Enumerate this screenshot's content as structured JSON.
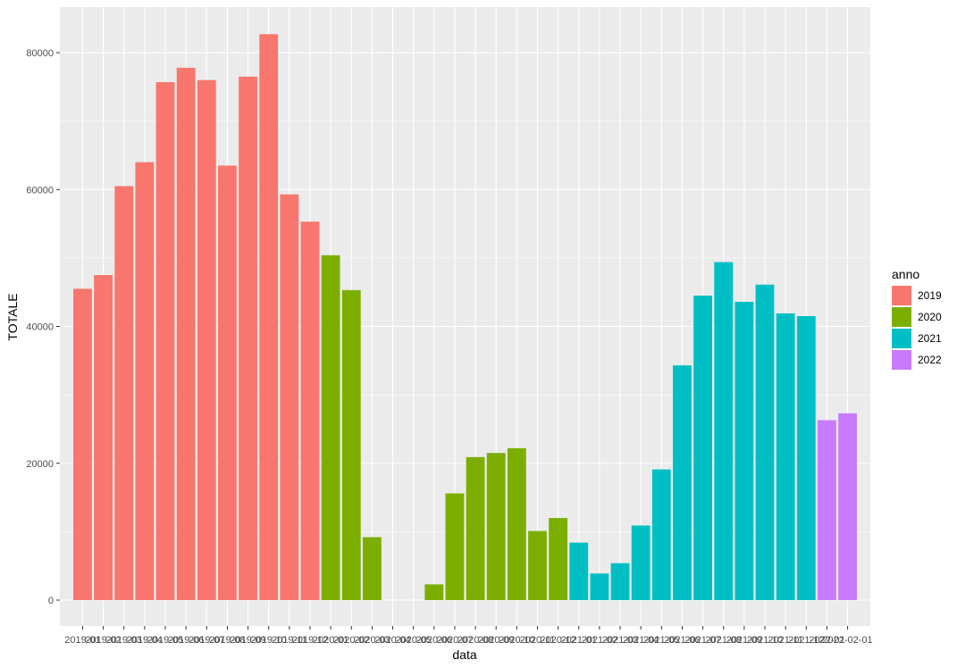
{
  "chart_data": {
    "type": "bar",
    "xlabel": "data",
    "ylabel": "TOTALE",
    "ylim": [
      0,
      85000
    ],
    "yticks": [
      0,
      20000,
      40000,
      60000,
      80000
    ],
    "ytick_labels": [
      "0",
      "20000",
      "40000",
      "60000",
      "80000"
    ],
    "grid": true,
    "legend": {
      "title": "anno",
      "position": "right",
      "entries": [
        {
          "label": "2019",
          "color": "#F8766D"
        },
        {
          "label": "2020",
          "color": "#7CAE00"
        },
        {
          "label": "2021",
          "color": "#00BFC4"
        },
        {
          "label": "2022",
          "color": "#C77CFF"
        }
      ]
    },
    "categories": [
      "2019-01-01",
      "2019-02-01",
      "2019-03-01",
      "2019-04-01",
      "2019-05-01",
      "2019-06-01",
      "2019-07-01",
      "2019-08-01",
      "2019-09-01",
      "2019-10-01",
      "2019-11-01",
      "2019-12-01",
      "2020-01-01",
      "2020-02-01",
      "2020-03-01",
      "2020-04-01",
      "2020-05-01",
      "2020-06-01",
      "2020-07-01",
      "2020-08-01",
      "2020-09-01",
      "2020-10-01",
      "2020-11-01",
      "2020-12-01",
      "2021-01-01",
      "2021-02-01",
      "2021-03-01",
      "2021-04-01",
      "2021-05-01",
      "2021-06-01",
      "2021-07-01",
      "2021-08-01",
      "2021-09-01",
      "2021-10-01",
      "2021-11-01",
      "2021-12-01",
      "2022-01-01",
      "2022-02-01"
    ],
    "tick_labels": [
      "2019-01",
      "2019-02",
      "2019-03",
      "2019-04",
      "2019-05",
      "2019-06",
      "2019-07",
      "2019-08",
      "2019-09",
      "2019-10",
      "2019-11",
      "2019-12",
      "2020-01",
      "2020-02",
      "2020-03",
      "2020-04",
      "2020-05",
      "2020-06",
      "2020-07",
      "2020-08",
      "2020-09",
      "2020-10",
      "2020-11",
      "2020-12",
      "2021-01",
      "2021-02",
      "2021-03",
      "2021-04",
      "2021-05",
      "2021-06",
      "2021-07",
      "2021-08",
      "2021-09",
      "2021-10",
      "2021-11",
      "2021-12",
      "2022-01",
      "2022-02-01"
    ],
    "series": [
      {
        "name": "2019",
        "color": "#F8766D",
        "values": [
          45500,
          47500,
          60500,
          64000,
          75700,
          77800,
          76000,
          63500,
          76500,
          82700,
          59300,
          55300,
          null,
          null,
          null,
          null,
          null,
          null,
          null,
          null,
          null,
          null,
          null,
          null,
          null,
          null,
          null,
          null,
          null,
          null,
          null,
          null,
          null,
          null,
          null,
          null,
          null,
          null
        ]
      },
      {
        "name": "2020",
        "color": "#7CAE00",
        "values": [
          null,
          null,
          null,
          null,
          null,
          null,
          null,
          null,
          null,
          null,
          null,
          null,
          50400,
          45300,
          9200,
          0,
          0,
          2300,
          15600,
          20900,
          21500,
          22200,
          10100,
          12000,
          null,
          null,
          null,
          null,
          null,
          null,
          null,
          null,
          null,
          null,
          null,
          null,
          null,
          null
        ]
      },
      {
        "name": "2021",
        "color": "#00BFC4",
        "values": [
          null,
          null,
          null,
          null,
          null,
          null,
          null,
          null,
          null,
          null,
          null,
          null,
          null,
          null,
          null,
          null,
          null,
          null,
          null,
          null,
          null,
          null,
          null,
          null,
          8400,
          3900,
          5400,
          10900,
          19100,
          34300,
          44500,
          49400,
          43600,
          46100,
          41900,
          41500,
          null,
          null
        ]
      },
      {
        "name": "2022",
        "color": "#C77CFF",
        "values": [
          null,
          null,
          null,
          null,
          null,
          null,
          null,
          null,
          null,
          null,
          null,
          null,
          null,
          null,
          null,
          null,
          null,
          null,
          null,
          null,
          null,
          null,
          null,
          null,
          null,
          null,
          null,
          null,
          null,
          null,
          null,
          null,
          null,
          null,
          null,
          null,
          26300,
          27300
        ]
      }
    ]
  }
}
